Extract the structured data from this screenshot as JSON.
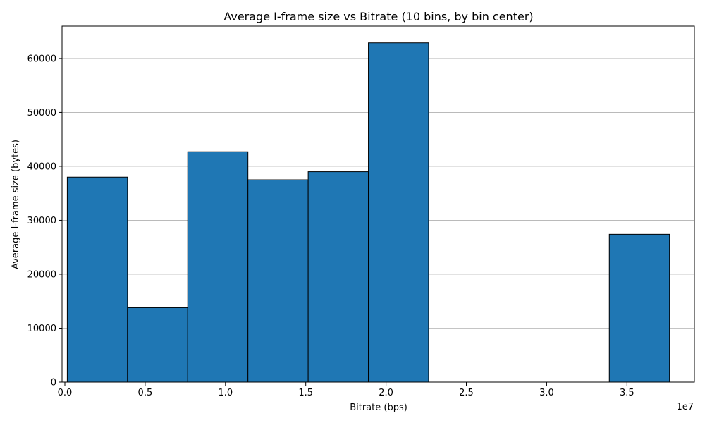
{
  "chart_data": {
    "type": "bar",
    "title": "Average I-frame size vs Bitrate (10 bins, by bin center)",
    "xlabel": "Bitrate (bps)",
    "ylabel": "Average I-frame size (bytes)",
    "x_offset_label": "1e7",
    "x_scale": 10000000,
    "xlim": [
      -175000,
      39200000
    ],
    "ylim": [
      0,
      66000
    ],
    "xticks": [
      0,
      5000000,
      10000000,
      15000000,
      20000000,
      25000000,
      30000000,
      35000000
    ],
    "xtick_labels": [
      "0.0",
      "0.5",
      "1.0",
      "1.5",
      "2.0",
      "2.5",
      "3.0",
      "3.5"
    ],
    "yticks": [
      0,
      10000,
      20000,
      30000,
      40000,
      50000,
      60000
    ],
    "ytick_labels": [
      "0",
      "10000",
      "20000",
      "30000",
      "40000",
      "50000",
      "60000"
    ],
    "grid": "y",
    "bin_edges": [
      150000,
      3900000,
      7650000,
      11400000,
      15150000,
      18900000,
      22650000,
      26400000,
      30150000,
      33900000,
      37650000
    ],
    "values": [
      38000,
      13800,
      42700,
      37500,
      39000,
      62900,
      0,
      0,
      0,
      27400
    ],
    "colors": {
      "bar_fill": "#1f77b4",
      "bar_edge": "#000000",
      "grid": "#b0b0b0"
    }
  }
}
